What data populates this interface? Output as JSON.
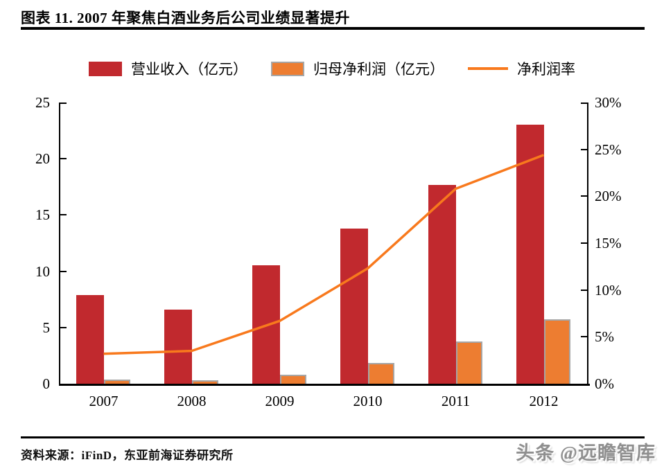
{
  "header": {
    "title": "图表 11. 2007 年聚焦白酒业务后公司业绩显著提升"
  },
  "footer": {
    "source": "资料来源：iFinD，东亚前海证券研究所",
    "watermark": "头条 @远瞻智库"
  },
  "chart_data": {
    "type": "bar+line",
    "title": "2007 年聚焦白酒业务后公司业绩显著提升",
    "categories": [
      "2007",
      "2008",
      "2009",
      "2010",
      "2011",
      "2012"
    ],
    "series": [
      {
        "name": "营业收入（亿元）",
        "type": "bar",
        "axis": "left",
        "color": "#c1292e",
        "values": [
          7.9,
          6.6,
          10.5,
          13.8,
          17.7,
          23.0
        ]
      },
      {
        "name": "归母净利润（亿元）",
        "type": "bar",
        "axis": "left",
        "color": "#ed7d31",
        "border_color": "#a6a6a6",
        "values": [
          0.25,
          0.2,
          0.65,
          1.7,
          3.65,
          5.6
        ]
      },
      {
        "name": "净利润率",
        "type": "line",
        "axis": "right",
        "color": "#f8791d",
        "values": [
          3.2,
          3.5,
          6.7,
          12.3,
          20.8,
          24.4
        ]
      }
    ],
    "left_axis": {
      "min": 0,
      "max": 25,
      "ticks": [
        "0",
        "5",
        "10",
        "15",
        "20",
        "25"
      ]
    },
    "right_axis": {
      "min": 0,
      "max": 30,
      "ticks": [
        "0%",
        "5%",
        "10%",
        "15%",
        "20%",
        "25%",
        "30%"
      ]
    },
    "legend_position": "top",
    "grid": false,
    "axis_color": "#000000"
  }
}
